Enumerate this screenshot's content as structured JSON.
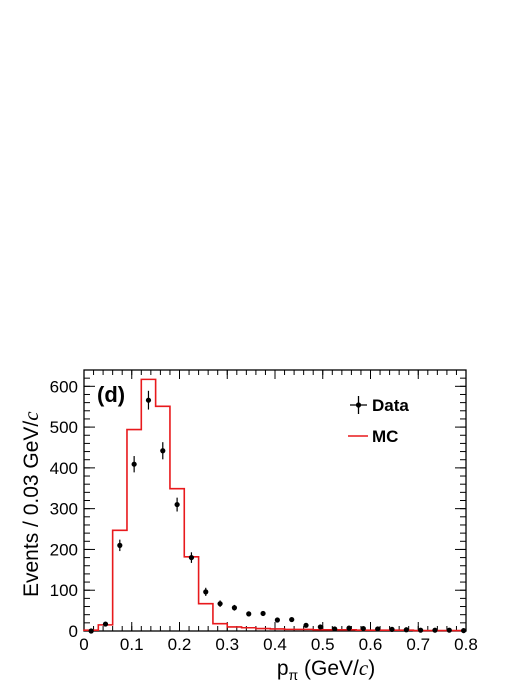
{
  "chart_data": {
    "type": "histogram",
    "panel_label": "(d)",
    "xlabel": "p_π (GeV/c)",
    "ylabel": "Events / 0.03 GeV/c",
    "xlim": [
      0,
      0.8
    ],
    "ylim": [
      0,
      640
    ],
    "bin_width": 0.03,
    "x_ticks": [
      "0",
      "0.1",
      "0.2",
      "0.3",
      "0.4",
      "0.5",
      "0.6",
      "0.7",
      "0.8"
    ],
    "y_ticks": [
      "0",
      "100",
      "200",
      "300",
      "400",
      "500",
      "600"
    ],
    "legend": {
      "placement": "top-right",
      "entries": [
        "Data",
        "MC"
      ]
    },
    "series": [
      {
        "name": "Data",
        "style": "points-with-errors",
        "color": "#000000",
        "x": [
          0.015,
          0.045,
          0.075,
          0.105,
          0.135,
          0.165,
          0.195,
          0.225,
          0.255,
          0.285,
          0.315,
          0.345,
          0.375,
          0.405,
          0.435,
          0.465,
          0.495,
          0.525,
          0.555,
          0.585,
          0.615,
          0.645,
          0.675,
          0.705,
          0.735,
          0.765,
          0.795
        ],
        "y": [
          0,
          17,
          210,
          409,
          566,
          442,
          310,
          180,
          96,
          67,
          57,
          42,
          43,
          27,
          28,
          14,
          10,
          5,
          7,
          6,
          5,
          4,
          3,
          2,
          2,
          2,
          1
        ],
        "yerr": [
          0,
          4,
          14,
          20,
          23,
          21,
          17,
          13,
          10,
          8,
          7,
          6,
          6,
          5,
          5,
          4,
          3,
          2,
          3,
          2,
          2,
          2,
          2,
          1,
          1,
          1,
          1
        ]
      },
      {
        "name": "MC",
        "style": "step",
        "color": "#e8191c",
        "bin_edges": [
          0,
          0.03,
          0.06,
          0.09,
          0.12,
          0.15,
          0.18,
          0.21,
          0.24,
          0.27,
          0.3,
          0.33,
          0.36,
          0.39,
          0.42,
          0.45,
          0.48,
          0.51,
          0.54,
          0.57,
          0.6,
          0.63,
          0.66,
          0.69,
          0.72,
          0.75,
          0.78,
          0.8
        ],
        "values": [
          2,
          15,
          247,
          494,
          617,
          551,
          349,
          182,
          67,
          18,
          10,
          8,
          6,
          5,
          4,
          4,
          3,
          3,
          3,
          2,
          2,
          2,
          2,
          1,
          1,
          1,
          1
        ]
      }
    ]
  }
}
